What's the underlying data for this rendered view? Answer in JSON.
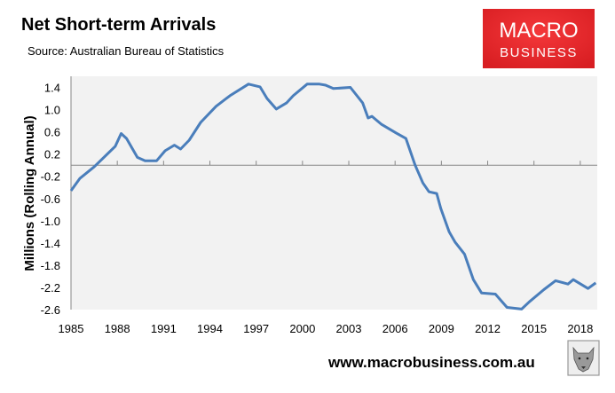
{
  "chart_data": {
    "type": "line",
    "title": "Net Short-term Arrivals",
    "subtitle": "Source: Australian Bureau of Statistics",
    "xlabel": "",
    "ylabel": "Millions (Rolling Annual)",
    "xlim": [
      1985,
      2019.1
    ],
    "ylim": [
      -2.6,
      1.6
    ],
    "x_ticks": [
      1985,
      1988,
      1991,
      1994,
      1997,
      2000,
      2003,
      2006,
      2009,
      2012,
      2015,
      2018
    ],
    "y_ticks": [
      1.4,
      1.0,
      0.6,
      0.2,
      -0.2,
      -0.6,
      -1.0,
      -1.4,
      -1.8,
      -2.2,
      -2.6
    ],
    "y_tick_labels": [
      "1.4",
      "1.0",
      "0.6",
      "0.2",
      "-0.2",
      "-0.6",
      "-1.0",
      "-1.4",
      "-1.8",
      "-2.2",
      "-2.6"
    ],
    "grid": false,
    "legend": "none",
    "series": [
      {
        "name": "Net Short-term Arrivals",
        "color": "#4a7ebb",
        "points": [
          [
            1985.0,
            -0.46
          ],
          [
            1985.57,
            -0.24
          ],
          [
            1986.5,
            -0.03
          ],
          [
            1987.87,
            0.34
          ],
          [
            1988.25,
            0.57
          ],
          [
            1988.6,
            0.48
          ],
          [
            1989.3,
            0.14
          ],
          [
            1989.8,
            0.08
          ],
          [
            1990.55,
            0.08
          ],
          [
            1991.1,
            0.26
          ],
          [
            1991.7,
            0.36
          ],
          [
            1992.1,
            0.29
          ],
          [
            1992.66,
            0.45
          ],
          [
            1993.4,
            0.77
          ],
          [
            1994.4,
            1.06
          ],
          [
            1995.3,
            1.25
          ],
          [
            1996.5,
            1.46
          ],
          [
            1997.25,
            1.41
          ],
          [
            1997.7,
            1.2
          ],
          [
            1998.3,
            1.01
          ],
          [
            1998.96,
            1.12
          ],
          [
            1999.4,
            1.25
          ],
          [
            2000.3,
            1.46
          ],
          [
            2001.1,
            1.46
          ],
          [
            2001.5,
            1.44
          ],
          [
            2002.0,
            1.38
          ],
          [
            2003.1,
            1.4
          ],
          [
            2003.9,
            1.12
          ],
          [
            2004.25,
            0.85
          ],
          [
            2004.5,
            0.88
          ],
          [
            2005.1,
            0.74
          ],
          [
            2006.07,
            0.58
          ],
          [
            2006.7,
            0.48
          ],
          [
            2007.3,
            0.0
          ],
          [
            2007.8,
            -0.32
          ],
          [
            2008.2,
            -0.48
          ],
          [
            2008.7,
            -0.51
          ],
          [
            2008.96,
            -0.78
          ],
          [
            2009.5,
            -1.2
          ],
          [
            2009.9,
            -1.39
          ],
          [
            2010.5,
            -1.6
          ],
          [
            2011.07,
            -2.06
          ],
          [
            2011.6,
            -2.3
          ],
          [
            2012.5,
            -2.32
          ],
          [
            2013.25,
            -2.56
          ],
          [
            2014.2,
            -2.59
          ],
          [
            2014.7,
            -2.46
          ],
          [
            2015.64,
            -2.24
          ],
          [
            2016.4,
            -2.08
          ],
          [
            2017.2,
            -2.14
          ],
          [
            2017.55,
            -2.06
          ],
          [
            2018.5,
            -2.22
          ],
          [
            2019.0,
            -2.12
          ]
        ]
      }
    ]
  },
  "branding": {
    "logo_line1": "MACRO",
    "logo_line2": "BUSINESS",
    "logo_color": "#e8262b",
    "website": "www.macrobusiness.com.au",
    "mascot_icon": "wolf-icon"
  }
}
